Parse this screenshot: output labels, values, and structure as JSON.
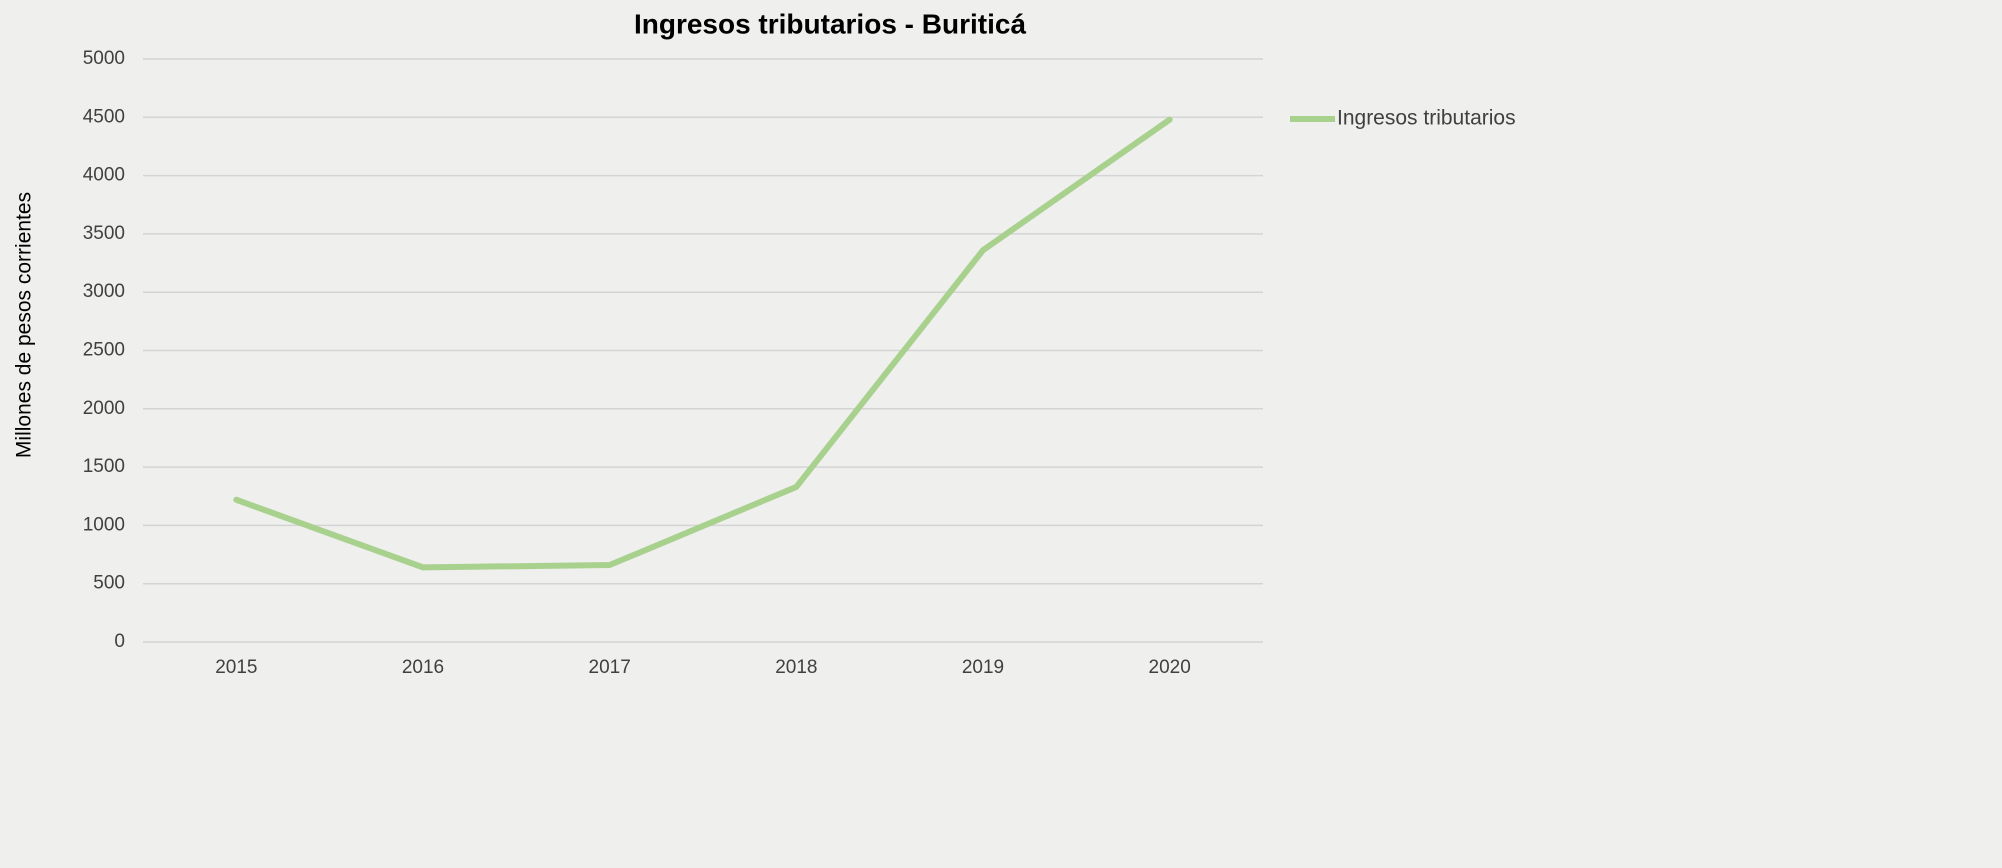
{
  "chart_data": {
    "type": "line",
    "title": "Ingresos tributarios - Buriticá",
    "ylabel": "Millones de pesos corrientes",
    "categories": [
      "2015",
      "2016",
      "2017",
      "2018",
      "2019",
      "2020"
    ],
    "series": [
      {
        "name": "Ingresos tributarios",
        "color": "#a9d18e",
        "values": [
          1220,
          640,
          660,
          1330,
          3360,
          4480
        ]
      }
    ],
    "ylim": [
      0,
      5000
    ],
    "yticks": [
      0,
      500,
      1000,
      1500,
      2000,
      2500,
      3000,
      3500,
      4000,
      4500,
      5000
    ],
    "grid": true,
    "legend": "right"
  }
}
